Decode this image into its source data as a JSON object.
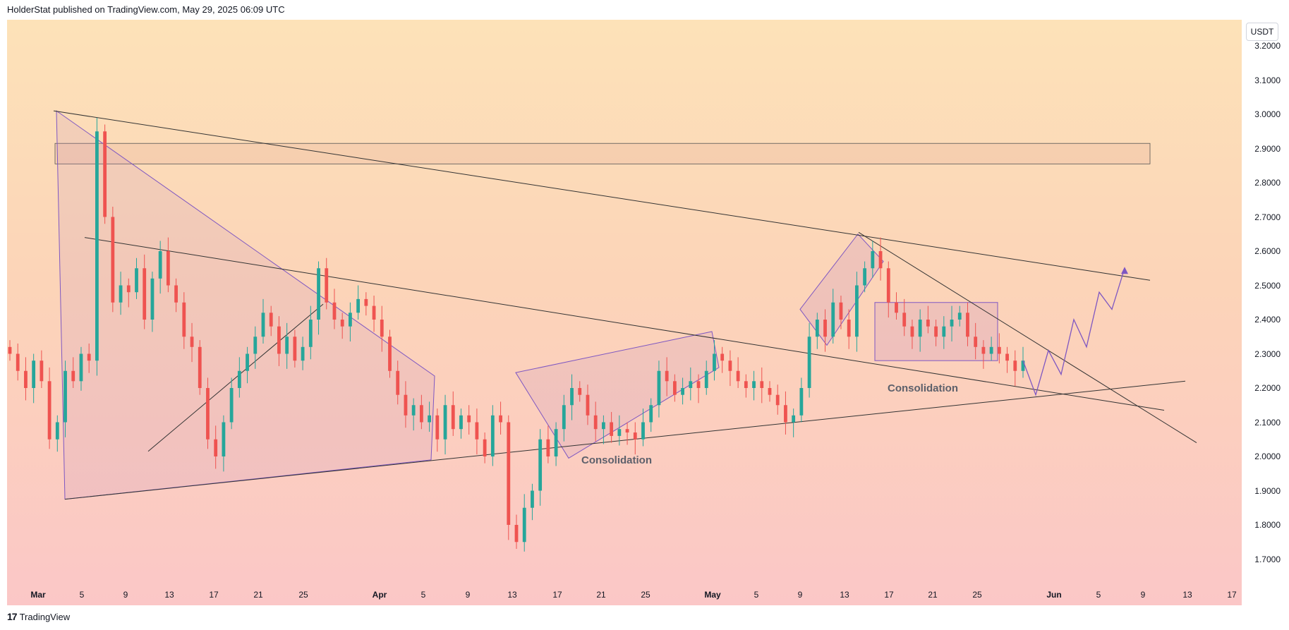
{
  "header": {
    "text": "HolderStat published on TradingView.com, May 29, 2025 06:09 UTC"
  },
  "price_axis": {
    "currency": "USDT",
    "ticks": [
      "3.2000",
      "3.1000",
      "3.0000",
      "2.9000",
      "2.8000",
      "2.7000",
      "2.6000",
      "2.5000",
      "2.4000",
      "2.3000",
      "2.2000",
      "2.1000",
      "2.0000",
      "1.9000",
      "1.8000",
      "1.7000"
    ]
  },
  "time_axis": {
    "ticks": [
      "Mar",
      "5",
      "9",
      "13",
      "17",
      "21",
      "25",
      "Apr",
      "5",
      "9",
      "13",
      "17",
      "21",
      "25",
      "May",
      "5",
      "9",
      "13",
      "17",
      "21",
      "25",
      "Jun",
      "5",
      "9",
      "13",
      "17"
    ]
  },
  "annotations": {
    "consolidation_1": "Consolidation",
    "consolidation_2": "Consolidation"
  },
  "footer": {
    "logo": "TradingView"
  },
  "colors": {
    "bull": "#26a69a",
    "bear": "#ef5350",
    "pattern": "#7e57c2",
    "trendline": "#333333"
  },
  "chart_data": {
    "type": "candlestick",
    "price_range": [
      1.62,
      3.24
    ],
    "closes": [
      2.3,
      2.25,
      2.2,
      2.28,
      2.22,
      2.05,
      2.1,
      2.25,
      2.22,
      2.3,
      2.28,
      2.95,
      2.7,
      2.45,
      2.5,
      2.48,
      2.55,
      2.4,
      2.52,
      2.6,
      2.5,
      2.45,
      2.35,
      2.32,
      2.2,
      2.05,
      2.0,
      2.1,
      2.2,
      2.25,
      2.3,
      2.35,
      2.42,
      2.38,
      2.3,
      2.35,
      2.28,
      2.32,
      2.4,
      2.55,
      2.45,
      2.4,
      2.38,
      2.42,
      2.46,
      2.44,
      2.4,
      2.35,
      2.25,
      2.18,
      2.12,
      2.15,
      2.1,
      2.12,
      2.05,
      2.15,
      2.08,
      2.12,
      2.1,
      2.05,
      2.0,
      2.12,
      2.1,
      1.8,
      1.75,
      1.85,
      1.9,
      2.05,
      2.0,
      2.08,
      2.15,
      2.2,
      2.18,
      2.12,
      2.08,
      2.1,
      2.06,
      2.08,
      2.07,
      2.05,
      2.1,
      2.15,
      2.25,
      2.22,
      2.18,
      2.2,
      2.22,
      2.2,
      2.25,
      2.3,
      2.28,
      2.25,
      2.22,
      2.2,
      2.22,
      2.2,
      2.18,
      2.15,
      2.1,
      2.12,
      2.2,
      2.35,
      2.4,
      2.35,
      2.45,
      2.4,
      2.35,
      2.5,
      2.55,
      2.6,
      2.55,
      2.45,
      2.42,
      2.38,
      2.35,
      2.4,
      2.38,
      2.35,
      2.38,
      2.4,
      2.42,
      2.35,
      2.32,
      2.3,
      2.32,
      2.3,
      2.28,
      2.25,
      2.28
    ],
    "projection": [
      2.28,
      2.18,
      2.31,
      2.24,
      2.4,
      2.32,
      2.48,
      2.43,
      2.55
    ]
  }
}
